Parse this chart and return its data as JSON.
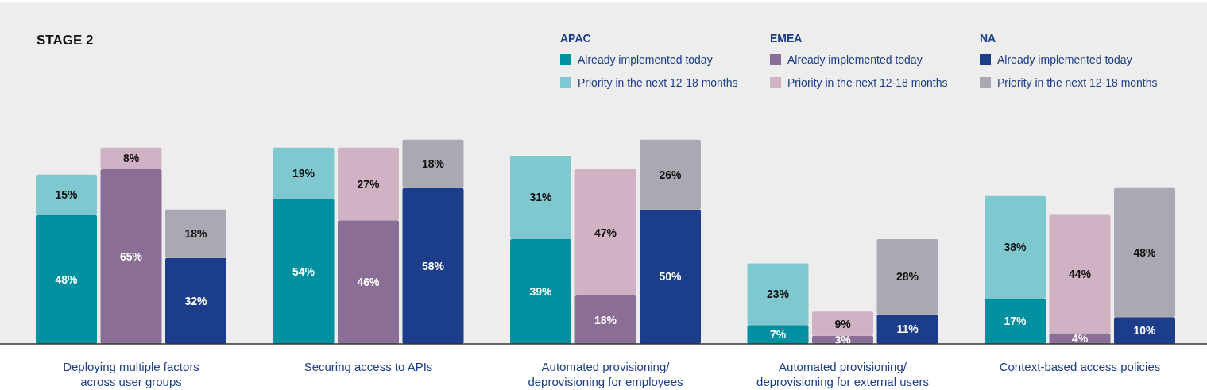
{
  "chart_data": {
    "type": "bar",
    "title": "STAGE 2",
    "stacked": true,
    "legend": "top right",
    "annotations": [
      "APAC",
      "EMEA",
      "NA"
    ],
    "categories": [
      null,
      "Deploying multiple factors across user groups",
      null,
      null,
      "Securing access to APIs",
      null,
      null,
      "Automated provisioning/ deprovisioning for employees",
      null,
      null,
      "Automated provisioning/ deprovisioning for external users",
      null,
      null,
      "Context-based access policies",
      null
    ],
    "series": [
      {
        "name": "Already implemented today",
        "colors": [
          "#0090a0",
          "#8b6e96",
          "#1b3d8a",
          "#0090a0",
          "#8b6e96",
          "#1b3d8a",
          "#0090a0",
          "#8b6e96",
          "#1b3d8a",
          "#0090a0",
          "#8b6e96",
          "#1b3d8a",
          "#0090a0",
          "#8b6e96",
          "#1b3d8a"
        ],
        "values": [
          48,
          65,
          32,
          54,
          46,
          58,
          39,
          18,
          50,
          7,
          3,
          11,
          17,
          4,
          10
        ],
        "value_labels": [
          "48%",
          "65%",
          "32%",
          "54%",
          "46%",
          "58%",
          "39%",
          "18%",
          "50%",
          "7%",
          "3%",
          "11%",
          "17%",
          "4%",
          "10%"
        ]
      },
      {
        "name": "Priority in the next 12-18 months",
        "colors": [
          "#80c8d0",
          "#d1b1c4",
          "#a9a9b3",
          "#80c8d0",
          "#d1b1c4",
          "#a9a9b3",
          "#80c8d0",
          "#d1b1c4",
          "#a9a9b3",
          "#80c8d0",
          "#d1b1c4",
          "#a9a9b3",
          "#80c8d0",
          "#d1b1c4",
          "#a9a9b3"
        ],
        "values": [
          15,
          8,
          18,
          19,
          27,
          18,
          31,
          47,
          26,
          23,
          9,
          28,
          38,
          44,
          48
        ],
        "value_labels": [
          "15%",
          "8%",
          "18%",
          "19%",
          "27%",
          "18%",
          "31%",
          "47%",
          "26%",
          "23%",
          "9%",
          "28%",
          "38%",
          "44%",
          "48%"
        ]
      }
    ]
  }
}
